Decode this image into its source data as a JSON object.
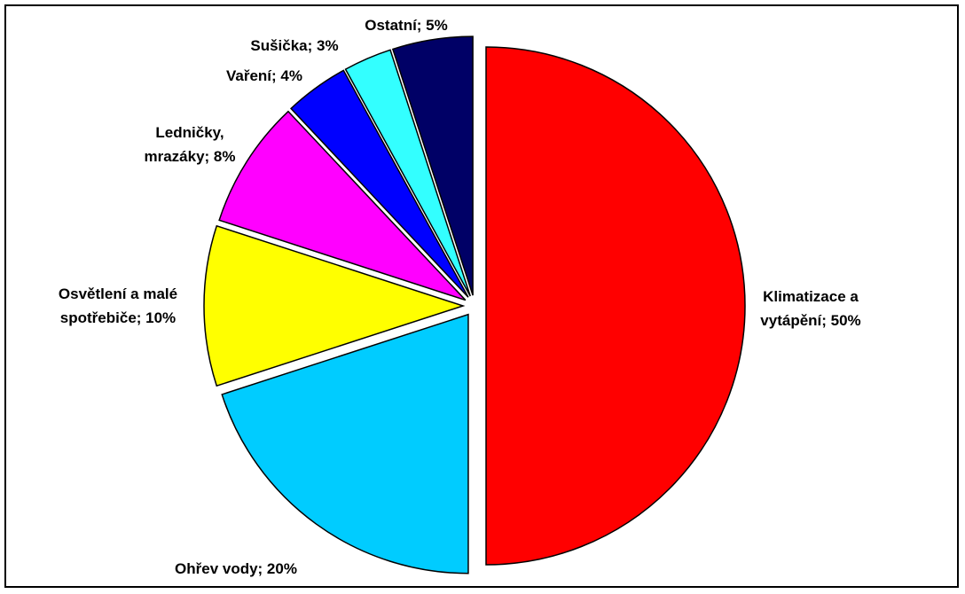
{
  "chart_data": {
    "type": "pie",
    "title": "",
    "unit": "%",
    "slices": [
      {
        "label_lines": [
          "Klimatizace a",
          "vytápění; 50%"
        ],
        "value": 50,
        "color": "#ff0000"
      },
      {
        "label_lines": [
          "Ohřev vody; 20%"
        ],
        "value": 20,
        "color": "#00ccff"
      },
      {
        "label_lines": [
          "Osvětlení a malé",
          "spotřebiče; 10%"
        ],
        "value": 10,
        "color": "#ffff00"
      },
      {
        "label_lines": [
          "Ledničky,",
          "mrazáky; 8%"
        ],
        "value": 8,
        "color": "#ff00ff"
      },
      {
        "label_lines": [
          "Vaření; 4%"
        ],
        "value": 4,
        "color": "#0000ff"
      },
      {
        "label_lines": [
          "Sušička; 3%"
        ],
        "value": 3,
        "color": "#33ffff"
      },
      {
        "label_lines": [
          "Ostatní; 5%"
        ],
        "value": 5,
        "color": "#000066"
      }
    ]
  }
}
